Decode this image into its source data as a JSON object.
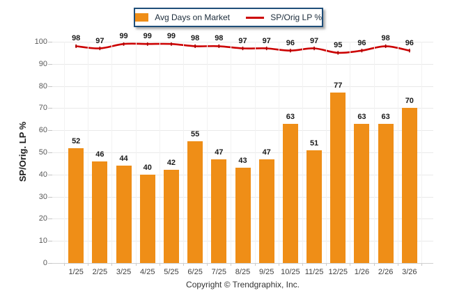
{
  "legend": {
    "bar_label": "Avg Days on Market",
    "line_label": "SP/Orig LP %"
  },
  "y_axis": {
    "title": "SP/Orig. LP %",
    "ticks": [
      100,
      90,
      80,
      70,
      60,
      50,
      40,
      30,
      20,
      10,
      0
    ]
  },
  "footer": "Copyright © Trendgraphix, Inc.",
  "colors": {
    "bar": "#EF8E17",
    "line": "#CC0000",
    "line_marker": "#A80000",
    "grid": "#E9E9E9",
    "axis": "#CFCFCF",
    "tick_text": "#595959",
    "xlabel_text": "#3F3F3F",
    "value_text": "#1A1A1A",
    "legend_border": "#1F4E79",
    "legend_text": "#1B2B3A",
    "footer_text": "#333333"
  },
  "chart_data": {
    "type": "combo",
    "title": "",
    "xlabel": "",
    "ylabel": "SP/Orig. LP %",
    "ylim": [
      0,
      100
    ],
    "grid": true,
    "legend_position": "top",
    "categories": [
      "1/25",
      "2/25",
      "3/25",
      "4/25",
      "5/25",
      "6/25",
      "7/25",
      "8/25",
      "9/25",
      "10/25",
      "11/25",
      "12/25",
      "1/26",
      "2/26",
      "3/26"
    ],
    "series": [
      {
        "name": "Avg Days on Market",
        "type": "bar",
        "values": [
          52,
          46,
          44,
          40,
          42,
          55,
          47,
          43,
          47,
          63,
          51,
          77,
          63,
          63,
          70
        ]
      },
      {
        "name": "SP/Orig LP %",
        "type": "line",
        "values": [
          98,
          97,
          99,
          99,
          99,
          98,
          98,
          97,
          97,
          96,
          97,
          95,
          96,
          98,
          96
        ]
      }
    ]
  }
}
